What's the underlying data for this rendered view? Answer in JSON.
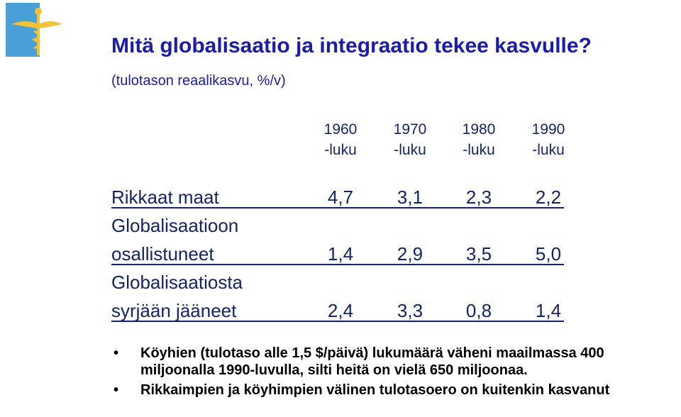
{
  "title": "Mitä globalisaatio ja integraatio tekee kasvulle?",
  "subtitle": "(tulotason reaalikasvu, %/v)",
  "table": {
    "columns": [
      [
        "1960",
        "-luku"
      ],
      [
        "1970",
        "-luku"
      ],
      [
        "1980",
        "-luku"
      ],
      [
        "1990",
        "-luku"
      ]
    ],
    "rows": [
      {
        "label": [
          "Rikkaat maat"
        ],
        "values": [
          "4,7",
          "3,1",
          "2,3",
          "2,2"
        ]
      },
      {
        "label": [
          "Globalisaatioon",
          "osallistuneet"
        ],
        "values": [
          "1,4",
          "2,9",
          "3,5",
          "5,0"
        ]
      },
      {
        "label": [
          "Globalisaatiosta",
          "syrjään jääneet"
        ],
        "values": [
          "2,4",
          "3,3",
          "0,8",
          "1,4"
        ]
      }
    ]
  },
  "bullets": [
    "Köyhien (tulotaso alle 1,5 $/päivä) lukumäärä väheni maailmassa 400 miljoonalla 1990-luvulla, silti heitä on vielä 650 miljoonaa.",
    "Rikkaimpien ja köyhimpien välinen tulotasoero on kuitenkin kasvanut"
  ]
}
